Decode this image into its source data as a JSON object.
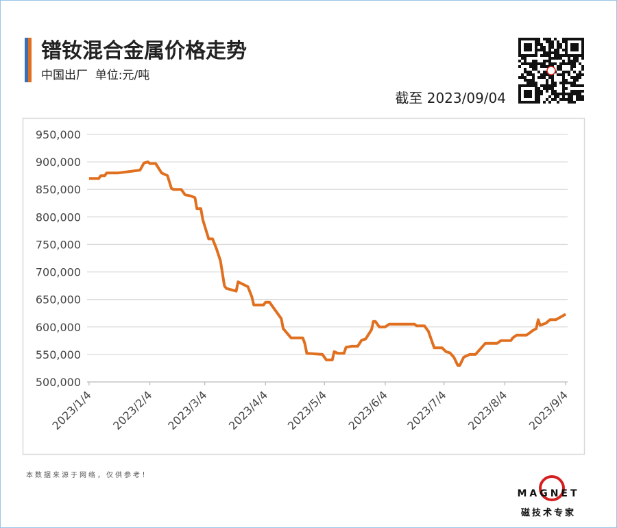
{
  "chart_data": {
    "type": "line",
    "title": "镨钕混合金属价格走势",
    "subtitle": "中国出厂  单位:元/吨",
    "date_note": "截至 2023/09/04",
    "source_note": "本数据来源于网络，仅供参考！",
    "brand": "MAGNET",
    "brand_caption": "磁技术专家",
    "color": "#e07020",
    "x": [
      "2023/1/4",
      "2023/1/9",
      "2023/1/10",
      "2023/1/12",
      "2023/1/13",
      "2023/1/19",
      "2023/1/30",
      "2023/2/1",
      "2023/2/3",
      "2023/2/4",
      "2023/2/7",
      "2023/2/10",
      "2023/2/13",
      "2023/2/15",
      "2023/2/16",
      "2023/2/20",
      "2023/2/22",
      "2023/2/25",
      "2023/2/27",
      "2023/2/28",
      "2023/3/2",
      "2023/3/3",
      "2023/3/6",
      "2023/3/8",
      "2023/3/10",
      "2023/3/12",
      "2023/3/14",
      "2023/3/15",
      "2023/3/20",
      "2023/3/21",
      "2023/3/26",
      "2023/3/28",
      "2023/3/29",
      "2023/4/3",
      "2023/4/4",
      "2023/4/6",
      "2023/4/9",
      "2023/4/12",
      "2023/4/13",
      "2023/4/17",
      "2023/4/23",
      "2023/4/24",
      "2023/4/25",
      "2023/5/3",
      "2023/5/5",
      "2023/5/8",
      "2023/5/9",
      "2023/5/11",
      "2023/5/14",
      "2023/5/15",
      "2023/5/18",
      "2023/5/21",
      "2023/5/23",
      "2023/5/25",
      "2023/5/28",
      "2023/5/29",
      "2023/5/30",
      "2023/6/1",
      "2023/6/4",
      "2023/6/6",
      "2023/6/19",
      "2023/6/20",
      "2023/6/24",
      "2023/6/26",
      "2023/6/29",
      "2023/7/3",
      "2023/7/5",
      "2023/7/7",
      "2023/7/9",
      "2023/7/11",
      "2023/7/12",
      "2023/7/14",
      "2023/7/17",
      "2023/7/20",
      "2023/7/25",
      "2023/7/31",
      "2023/8/2",
      "2023/8/7",
      "2023/8/8",
      "2023/8/10",
      "2023/8/15",
      "2023/8/17",
      "2023/8/18",
      "2023/8/20",
      "2023/8/21",
      "2023/8/22",
      "2023/8/25",
      "2023/8/27",
      "2023/8/30",
      "2023/9/4"
    ],
    "values": [
      870000,
      870000,
      875000,
      875000,
      880000,
      880000,
      885000,
      898000,
      900000,
      897000,
      897000,
      880000,
      875000,
      852000,
      850000,
      850000,
      840000,
      838000,
      835000,
      815000,
      815000,
      795000,
      760000,
      760000,
      742000,
      720000,
      675000,
      670000,
      665000,
      682000,
      673000,
      655000,
      640000,
      640000,
      645000,
      645000,
      630000,
      615000,
      597000,
      580000,
      580000,
      570000,
      552000,
      550000,
      540000,
      540000,
      555000,
      552000,
      552000,
      563000,
      565000,
      565000,
      576000,
      578000,
      595000,
      610000,
      610000,
      600000,
      600000,
      605000,
      605000,
      602000,
      602000,
      592000,
      562000,
      562000,
      555000,
      553000,
      545000,
      530000,
      530000,
      545000,
      550000,
      550000,
      570000,
      570000,
      575000,
      575000,
      580000,
      585000,
      585000,
      590000,
      593000,
      597000,
      613000,
      603000,
      607000,
      613000,
      613000,
      623000
    ],
    "xlim": [
      "2023/1/3",
      "2023/9/5"
    ],
    "xticks": [
      "2023/1/4",
      "2023/2/4",
      "2023/3/4",
      "2023/4/4",
      "2023/5/4",
      "2023/6/4",
      "2023/7/4",
      "2023/8/4",
      "2023/9/4"
    ],
    "ylim": [
      500000,
      950000
    ],
    "yticks": [
      {
        "value": 500000,
        "label": "500,000"
      },
      {
        "value": 550000,
        "label": "550,000"
      },
      {
        "value": 600000,
        "label": "600,000"
      },
      {
        "value": 650000,
        "label": "650,000"
      },
      {
        "value": 700000,
        "label": "700,000"
      },
      {
        "value": 750000,
        "label": "750,000"
      },
      {
        "value": 800000,
        "label": "800,000"
      },
      {
        "value": 850000,
        "label": "850,000"
      },
      {
        "value": 900000,
        "label": "900,000"
      },
      {
        "value": 950000,
        "label": "950,000"
      }
    ],
    "grid": true
  }
}
